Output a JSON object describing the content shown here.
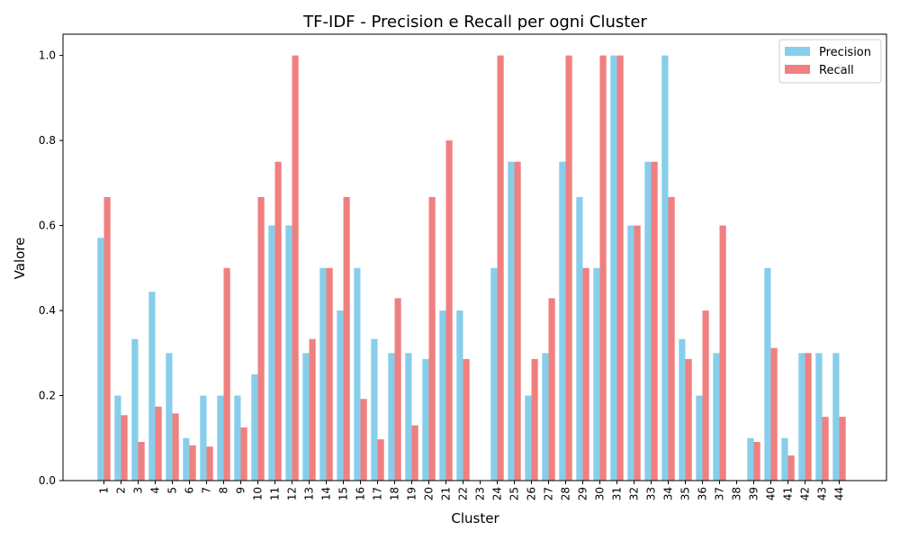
{
  "chart_data": {
    "type": "bar",
    "title": "TF-IDF - Precision e Recall per ogni Cluster",
    "xlabel": "Cluster",
    "ylabel": "Valore",
    "ylim": [
      0,
      1.05
    ],
    "yticks": [
      "0.0",
      "0.2",
      "0.4",
      "0.6",
      "0.8",
      "1.0"
    ],
    "legend_position": "top-right",
    "categories": [
      "1",
      "2",
      "3",
      "4",
      "5",
      "6",
      "7",
      "8",
      "9",
      "10",
      "11",
      "12",
      "13",
      "14",
      "15",
      "16",
      "17",
      "18",
      "19",
      "20",
      "21",
      "22",
      "23",
      "24",
      "25",
      "26",
      "27",
      "28",
      "29",
      "30",
      "31",
      "32",
      "33",
      "34",
      "35",
      "36",
      "37",
      "38",
      "39",
      "40",
      "41",
      "42",
      "43",
      "44"
    ],
    "series": [
      {
        "name": "Precision",
        "color": "#87ceeb",
        "values": [
          0.571,
          0.2,
          0.333,
          0.444,
          0.3,
          0.1,
          0.2,
          0.2,
          0.2,
          0.25,
          0.6,
          0.6,
          0.3,
          0.5,
          0.4,
          0.5,
          0.333,
          0.3,
          0.3,
          0.286,
          0.4,
          0.4,
          0.0,
          0.5,
          0.75,
          0.2,
          0.3,
          0.75,
          0.667,
          0.5,
          1.0,
          0.6,
          0.75,
          1.0,
          0.333,
          0.2,
          0.3,
          0.0,
          0.1,
          0.5,
          0.1,
          0.3,
          0.3,
          0.3
        ]
      },
      {
        "name": "Recall",
        "color": "#f08080",
        "values": [
          0.667,
          0.154,
          0.091,
          0.174,
          0.158,
          0.083,
          0.08,
          0.5,
          0.125,
          0.667,
          0.75,
          1.0,
          0.333,
          0.5,
          0.667,
          0.192,
          0.097,
          0.429,
          0.13,
          0.667,
          0.8,
          0.286,
          0.0,
          1.0,
          0.75,
          0.286,
          0.429,
          1.0,
          0.5,
          1.0,
          1.0,
          0.6,
          0.75,
          0.667,
          0.286,
          0.4,
          0.6,
          0.0,
          0.091,
          0.312,
          0.059,
          0.3,
          0.15,
          0.15
        ]
      }
    ]
  }
}
